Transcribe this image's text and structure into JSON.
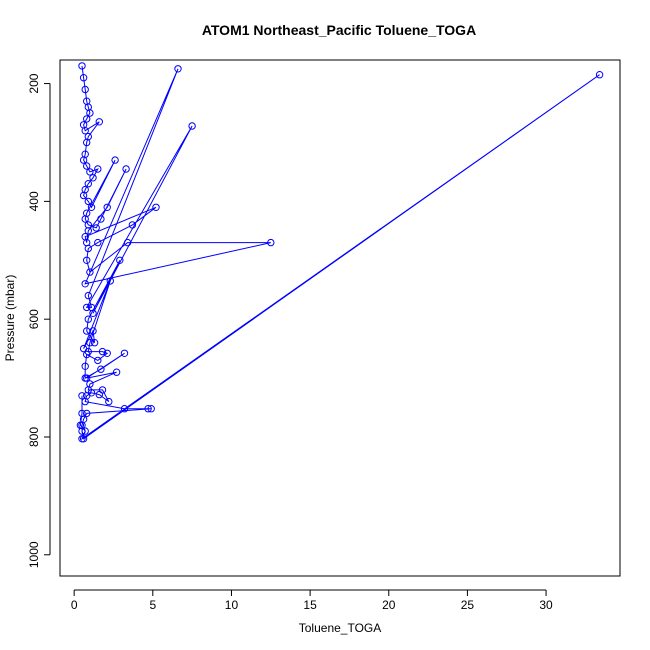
{
  "chart_data": {
    "type": "line",
    "title": "ATOM1 Northeast_Pacific Toluene_TOGA",
    "xlabel": "Toluene_TOGA",
    "ylabel": "Pressure (mbar)",
    "xlim": [
      -0.9,
      34.7
    ],
    "ylim": [
      1036,
      160
    ],
    "y_reversed": true,
    "xticks": [
      0,
      5,
      10,
      15,
      20,
      25,
      30
    ],
    "yticks": [
      200,
      400,
      600,
      800,
      1000
    ],
    "color": "#0000ff",
    "marker": "open-circle",
    "grid": false,
    "legend": "none",
    "x": [
      0.5,
      0.6,
      0.7,
      0.8,
      0.9,
      1.0,
      0.8,
      0.6,
      0.7,
      1.6,
      0.9,
      0.8,
      0.7,
      0.6,
      0.8,
      1.0,
      1.5,
      1.2,
      0.9,
      0.7,
      0.6,
      0.9,
      1.1,
      2.6,
      0.8,
      0.7,
      0.9,
      1.4,
      1.7,
      3.3,
      2.1,
      0.9,
      0.8,
      0.7,
      5.2,
      3.7,
      1.5,
      0.9,
      0.8,
      1.0,
      3.4,
      12.5,
      0.7,
      6.6,
      0.9,
      1.1,
      0.8,
      7.5,
      1.2,
      2.9,
      0.9,
      0.8,
      1.3,
      1.2,
      0.6,
      2.3,
      1.0,
      0.9,
      1.8,
      2.1,
      1.5,
      0.8,
      0.7,
      0.7,
      1.7,
      3.2,
      0.8,
      2.7,
      1.0,
      0.9,
      1.8,
      2.2,
      1.6,
      1.1,
      0.8,
      0.7,
      3.2,
      4.7,
      4.9,
      0.8,
      0.6,
      0.5,
      0.5,
      0.6,
      33.4,
      0.5,
      0.7,
      0.4,
      0.5,
      0.5
    ],
    "y": [
      170,
      190,
      210,
      230,
      240,
      250,
      260,
      270,
      280,
      265,
      290,
      300,
      320,
      330,
      340,
      350,
      345,
      360,
      370,
      380,
      390,
      400,
      410,
      330,
      420,
      430,
      440,
      445,
      430,
      345,
      410,
      450,
      470,
      460,
      410,
      440,
      470,
      480,
      500,
      520,
      470,
      470,
      540,
      175,
      560,
      580,
      580,
      272,
      590,
      500,
      600,
      620,
      640,
      620,
      650,
      535,
      640,
      655,
      655,
      658,
      670,
      660,
      680,
      700,
      685,
      658,
      700,
      690,
      710,
      720,
      720,
      740,
      728,
      725,
      730,
      740,
      752,
      752,
      752,
      760,
      770,
      780,
      790,
      803,
      185,
      803,
      790,
      780,
      760,
      730
    ]
  }
}
